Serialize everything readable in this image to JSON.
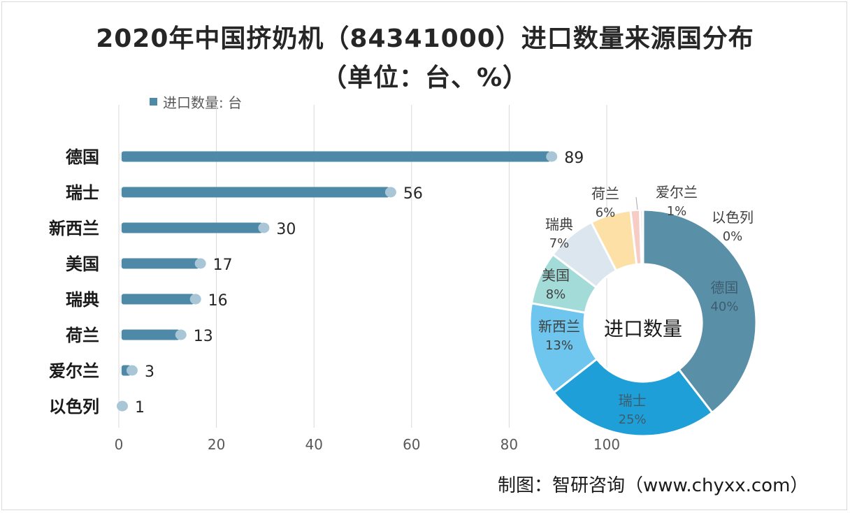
{
  "title_line1": "2020年中国挤奶机（84341000）进口数量来源国分布",
  "title_line2": "（单位：台、%）",
  "footer": "制图：智研咨询（www.chyxx.com）",
  "colors": {
    "bar": "#4e8aa8",
    "grid": "#d9d9d9",
    "axis_text": "#595959",
    "category_text": "#1a1a1a"
  },
  "chart_data": [
    {
      "type": "bar",
      "orientation": "horizontal",
      "legend": {
        "label": "进口数量: 台",
        "position": "top-left"
      },
      "categories": [
        "德国",
        "瑞士",
        "新西兰",
        "美国",
        "瑞典",
        "荷兰",
        "爱尔兰",
        "以色列"
      ],
      "values": [
        89,
        56,
        30,
        17,
        16,
        13,
        3,
        1
      ],
      "xlim": [
        0,
        100
      ],
      "xticks": [
        0,
        20,
        40,
        60,
        80,
        100
      ],
      "grid": true
    },
    {
      "type": "pie",
      "style": "donut",
      "center_label": "进口数量",
      "slices": [
        {
          "label": "德国",
          "percent": "40%",
          "value": 89,
          "color": "#5a8fa8"
        },
        {
          "label": "瑞士",
          "percent": "25%",
          "value": 56,
          "color": "#1f9fd8"
        },
        {
          "label": "新西兰",
          "percent": "13%",
          "value": 30,
          "color": "#6ec6ee"
        },
        {
          "label": "美国",
          "percent": "8%",
          "value": 17,
          "color": "#a3dbd9"
        },
        {
          "label": "瑞典",
          "percent": "7%",
          "value": 16,
          "color": "#dce6ee"
        },
        {
          "label": "荷兰",
          "percent": "6%",
          "value": 13,
          "color": "#fce0a6"
        },
        {
          "label": "爱尔兰",
          "percent": "1%",
          "value": 3,
          "color": "#f6ccc4"
        },
        {
          "label": "以色列",
          "percent": "0%",
          "value": 1,
          "color": "#e8e8e8"
        }
      ]
    }
  ]
}
